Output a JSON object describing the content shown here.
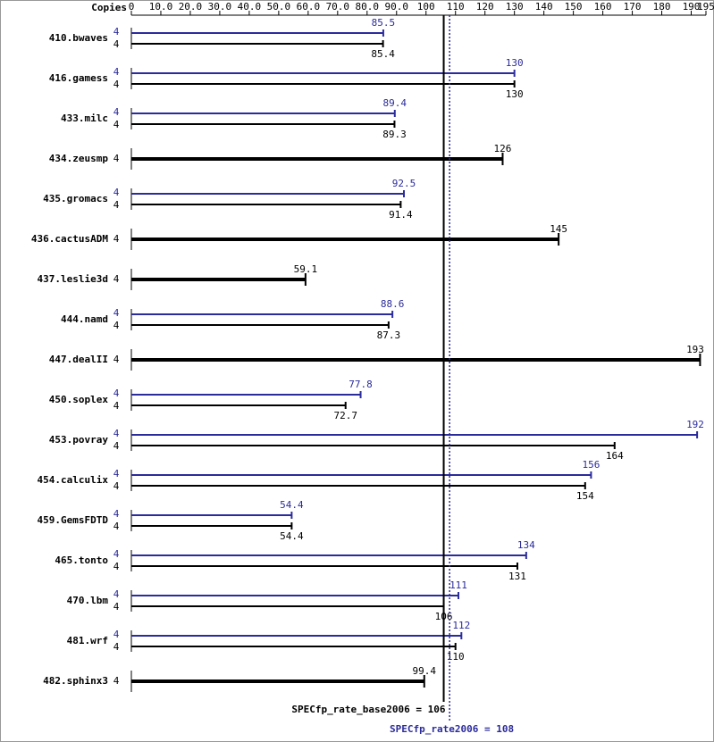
{
  "chart_data": {
    "type": "spec-bar",
    "copies_label": "Copies",
    "categories": [
      "410.bwaves",
      "416.gamess",
      "433.milc",
      "434.zeusmp",
      "435.gromacs",
      "436.cactusADM",
      "437.leslie3d",
      "444.namd",
      "447.dealII",
      "450.soplex",
      "453.povray",
      "454.calculix",
      "459.GemsFDTD",
      "465.tonto",
      "470.lbm",
      "481.wrf",
      "482.sphinx3"
    ],
    "series": [
      {
        "color": "#2b2b9b",
        "copies": [
          4,
          4,
          4,
          null,
          4,
          null,
          null,
          4,
          null,
          4,
          4,
          4,
          4,
          4,
          4,
          4,
          null
        ],
        "values": [
          85.5,
          130,
          89.4,
          null,
          92.5,
          null,
          null,
          88.6,
          null,
          77.8,
          192,
          156,
          54.4,
          134,
          111,
          112,
          null
        ]
      },
      {
        "color": "#000000",
        "copies": [
          4,
          4,
          4,
          4,
          4,
          4,
          4,
          4,
          4,
          4,
          4,
          4,
          4,
          4,
          4,
          4,
          4
        ],
        "values": [
          85.4,
          130,
          89.3,
          126,
          91.4,
          145,
          59.1,
          87.3,
          193,
          72.7,
          164,
          154,
          54.4,
          131,
          106,
          110,
          99.4
        ]
      }
    ],
    "xlim": [
      0,
      195
    ],
    "xticks": [
      0,
      {
        "value": 10,
        "label": "10.0"
      },
      {
        "value": 20,
        "label": "20.0"
      },
      {
        "value": 30,
        "label": "30.0"
      },
      {
        "value": 40,
        "label": "40.0"
      },
      {
        "value": 50,
        "label": "50.0"
      },
      {
        "value": 60,
        "label": "60.0"
      },
      {
        "value": 70,
        "label": "70.0"
      },
      {
        "value": 80,
        "label": "80.0"
      },
      {
        "value": 90,
        "label": "90.0"
      },
      100,
      110,
      120,
      130,
      140,
      150,
      160,
      170,
      180,
      190,
      195
    ],
    "reference_lines": [
      {
        "label": "SPECfp_rate_base2006 = 106",
        "value": 106,
        "color": "#000000",
        "dashed": false
      },
      {
        "label": "SPECfp_rate2006 = 108",
        "value": 108,
        "color": "#2b2b9b",
        "dashed": true
      }
    ]
  }
}
